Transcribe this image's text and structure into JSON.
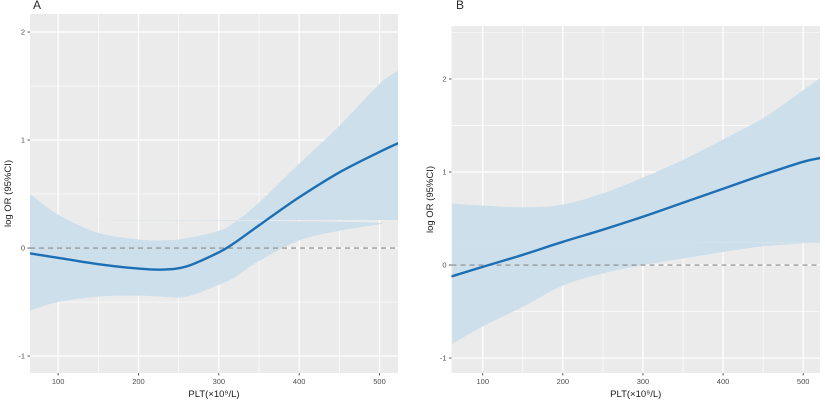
{
  "figure": {
    "background": "#ffffff",
    "description": "Two-panel restricted cubic spline plot of log OR (95%CI) versus platelet count"
  },
  "style": {
    "panel_background": "#ebebeb",
    "grid_color": "#ffffff",
    "band_color": "#ccdfeb",
    "line_color": "#1d6fb4",
    "reference_line_color": "#8a8a8a",
    "tick_label_color": "#4d4d4d",
    "axis_title_color": "#1a1a1a",
    "panel_letter_color": "#2b2b2b"
  },
  "chart_data": [
    {
      "panel": "A",
      "type": "line",
      "title": "A",
      "xlabel": "PLT(×10⁹/L)",
      "ylabel": "log OR (95%CI)",
      "x_ticks": [
        100,
        200,
        300,
        400,
        500
      ],
      "y_ticks": [
        -1,
        0,
        1,
        2
      ],
      "xlim": [
        65,
        523
      ],
      "ylim": [
        -1.157,
        2.167
      ],
      "grid": true,
      "legend": "none",
      "reference_line_y": 0,
      "x": [
        65,
        100,
        150,
        200,
        230,
        260,
        300,
        320,
        350,
        400,
        450,
        500,
        523
      ],
      "series": [
        {
          "name": "log OR (fit)",
          "role": "fit",
          "values": [
            -0.05,
            -0.09,
            -0.15,
            -0.19,
            -0.2,
            -0.17,
            -0.04,
            0.05,
            0.21,
            0.47,
            0.7,
            0.89,
            0.97
          ]
        },
        {
          "name": "95% CI upper",
          "role": "ci_upper",
          "values": [
            0.5,
            0.31,
            0.14,
            0.08,
            0.07,
            0.09,
            0.16,
            0.24,
            0.42,
            0.78,
            1.13,
            1.52,
            1.64
          ]
        },
        {
          "name": "95% CI lower",
          "role": "ci_lower",
          "values": [
            -0.58,
            -0.5,
            -0.45,
            -0.44,
            -0.45,
            -0.45,
            -0.34,
            -0.27,
            -0.12,
            0.07,
            0.16,
            0.22,
            0.26
          ]
        }
      ]
    },
    {
      "panel": "B",
      "type": "line",
      "title": "B",
      "xlabel": "PLT(×10⁹/L)",
      "ylabel": "log OR (95%CI)",
      "x_ticks": [
        100,
        200,
        300,
        400,
        500
      ],
      "y_ticks": [
        -1,
        0,
        1,
        2
      ],
      "xlim": [
        61,
        521
      ],
      "ylim": [
        -1.161,
        2.57
      ],
      "grid": true,
      "legend": "none",
      "reference_line_y": 0,
      "x": [
        62,
        100,
        150,
        200,
        250,
        300,
        350,
        400,
        450,
        500,
        521
      ],
      "series": [
        {
          "name": "log OR (fit)",
          "role": "fit",
          "values": [
            -0.12,
            -0.02,
            0.11,
            0.25,
            0.38,
            0.52,
            0.67,
            0.82,
            0.97,
            1.11,
            1.15
          ]
        },
        {
          "name": "95% CI upper",
          "role": "ci_upper",
          "values": [
            0.66,
            0.64,
            0.62,
            0.65,
            0.77,
            0.94,
            1.13,
            1.35,
            1.58,
            1.88,
            2.01
          ]
        },
        {
          "name": "95% CI lower",
          "role": "ci_lower",
          "values": [
            -0.85,
            -0.66,
            -0.45,
            -0.22,
            -0.09,
            0.0,
            0.07,
            0.14,
            0.2,
            0.23,
            0.24
          ]
        }
      ]
    }
  ]
}
